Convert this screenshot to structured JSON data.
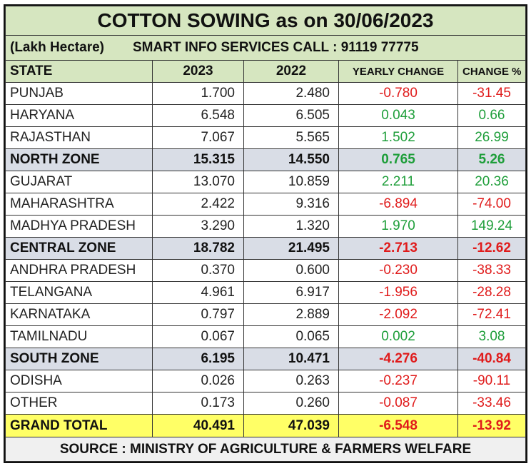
{
  "title": "COTTON SOWING  as on 30/06/2023",
  "unit": "(Lakh Hectare)",
  "contact": "SMART INFO SERVICES CALL : 91119 77775",
  "headers": [
    "STATE",
    "2023",
    "2022",
    "YEARLY CHANGE",
    "CHANGE %"
  ],
  "rows": [
    {
      "state": "PUNJAB",
      "y2023": "1.700",
      "y2022": "2.480",
      "change": "-0.780",
      "pct": "-31.45",
      "type": "state"
    },
    {
      "state": "HARYANA",
      "y2023": "6.548",
      "y2022": "6.505",
      "change": "0.043",
      "pct": "0.66",
      "type": "state"
    },
    {
      "state": "RAJASTHAN",
      "y2023": "7.067",
      "y2022": "5.565",
      "change": "1.502",
      "pct": "26.99",
      "type": "state"
    },
    {
      "state": "NORTH ZONE",
      "y2023": "15.315",
      "y2022": "14.550",
      "change": "0.765",
      "pct": "5.26",
      "type": "zone"
    },
    {
      "state": "GUJARAT",
      "y2023": "13.070",
      "y2022": "10.859",
      "change": "2.211",
      "pct": "20.36",
      "type": "state"
    },
    {
      "state": "MAHARASHTRA",
      "y2023": "2.422",
      "y2022": "9.316",
      "change": "-6.894",
      "pct": "-74.00",
      "type": "state"
    },
    {
      "state": "MADHYA PRADESH",
      "y2023": "3.290",
      "y2022": "1.320",
      "change": "1.970",
      "pct": "149.24",
      "type": "state"
    },
    {
      "state": "CENTRAL ZONE",
      "y2023": "18.782",
      "y2022": "21.495",
      "change": "-2.713",
      "pct": "-12.62",
      "type": "zone"
    },
    {
      "state": "ANDHRA PRADESH",
      "y2023": "0.370",
      "y2022": "0.600",
      "change": "-0.230",
      "pct": "-38.33",
      "type": "state"
    },
    {
      "state": "TELANGANA",
      "y2023": "4.961",
      "y2022": "6.917",
      "change": "-1.956",
      "pct": "-28.28",
      "type": "state"
    },
    {
      "state": "KARNATAKA",
      "y2023": "0.797",
      "y2022": "2.889",
      "change": "-2.092",
      "pct": "-72.41",
      "type": "state"
    },
    {
      "state": "TAMILNADU",
      "y2023": "0.067",
      "y2022": "0.065",
      "change": "0.002",
      "pct": "3.08",
      "type": "state"
    },
    {
      "state": "SOUTH ZONE",
      "y2023": "6.195",
      "y2022": "10.471",
      "change": "-4.276",
      "pct": "-40.84",
      "type": "zone"
    },
    {
      "state": "ODISHA",
      "y2023": "0.026",
      "y2022": "0.263",
      "change": "-0.237",
      "pct": "-90.11",
      "type": "state"
    },
    {
      "state": "OTHER",
      "y2023": "0.173",
      "y2022": "0.260",
      "change": "-0.087",
      "pct": "-33.46",
      "type": "state"
    },
    {
      "state": "GRAND TOTAL",
      "y2023": "40.491",
      "y2022": "47.039",
      "change": "-6.548",
      "pct": "-13.92",
      "type": "total"
    }
  ],
  "source": "SOURCE : MINISTRY OF AGRICULTURE & FARMERS WELFARE",
  "colors": {
    "positive": "#1e9e3a",
    "negative": "#e01b1b",
    "header_bg": "#d6e6c0",
    "zone_bg": "#d9dde6",
    "total_bg": "#ffff66"
  }
}
